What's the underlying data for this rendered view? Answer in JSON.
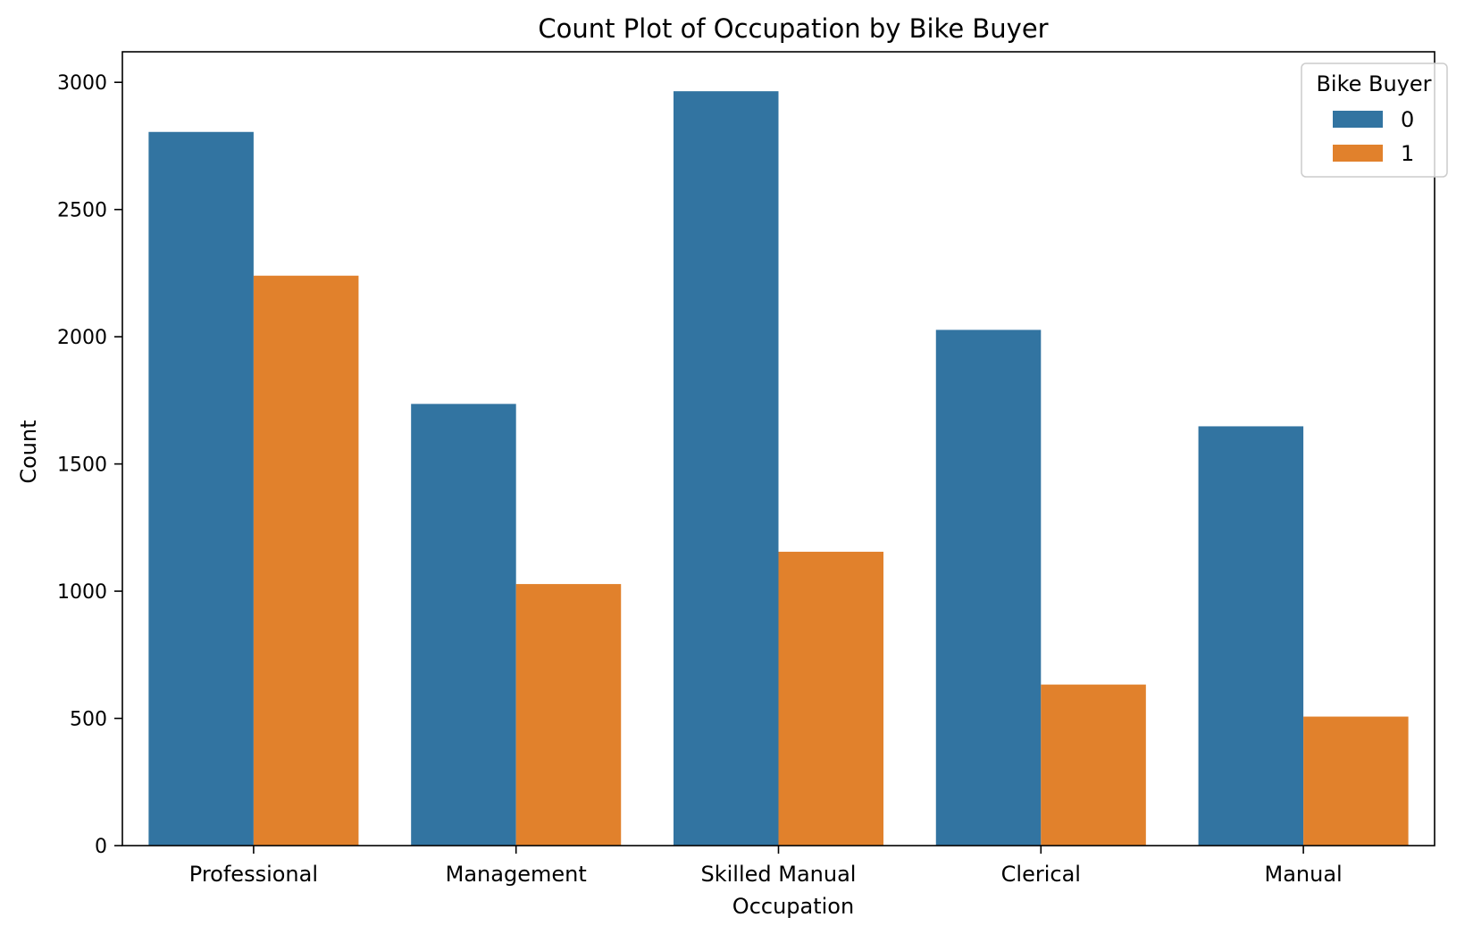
{
  "chart_data": {
    "type": "bar",
    "title": "Count Plot of Occupation by Bike Buyer",
    "xlabel": "Occupation",
    "ylabel": "Count",
    "categories": [
      "Professional",
      "Management",
      "Skilled Manual",
      "Clerical",
      "Manual"
    ],
    "series": [
      {
        "name": "0",
        "values": [
          2805,
          1736,
          2965,
          2027,
          1648
        ],
        "color": "#3274a1"
      },
      {
        "name": "1",
        "values": [
          2240,
          1028,
          1155,
          633,
          507
        ],
        "color": "#e1812c"
      }
    ],
    "ylim": [
      0,
      3120
    ],
    "yticks": [
      0,
      500,
      1000,
      1500,
      2000,
      2500,
      3000
    ],
    "grid": false,
    "legend": {
      "title": "Bike Buyer",
      "placement": "top-right"
    }
  }
}
